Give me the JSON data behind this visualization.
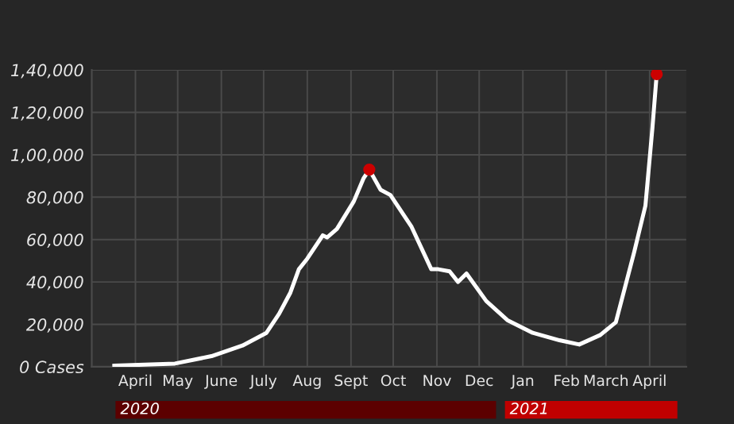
{
  "chart_data": {
    "type": "line",
    "x": [
      "2020-03-17",
      "2020-04-29",
      "2020-05-25",
      "2020-06-16",
      "2020-07-03",
      "2020-07-12",
      "2020-07-20",
      "2020-07-26",
      "2020-08-01",
      "2020-08-12",
      "2020-08-15",
      "2020-08-22",
      "2020-09-03",
      "2020-09-10",
      "2020-09-14",
      "2020-09-22",
      "2020-09-29",
      "2020-10-14",
      "2020-10-28",
      "2020-11-02",
      "2020-11-10",
      "2020-11-16",
      "2020-11-22",
      "2020-12-06",
      "2020-12-21",
      "2021-01-08",
      "2021-01-27",
      "2021-02-10",
      "2021-02-25",
      "2021-03-08",
      "2021-03-21",
      "2021-03-29",
      "2021-04-03",
      "2021-04-06"
    ],
    "series": [
      {
        "color": "#ffffff",
        "line_style": "solid",
        "marker": "none",
        "values": [
          500,
          1500,
          5000,
          10000,
          16000,
          25000,
          35000,
          46000,
          51000,
          62000,
          61000,
          65000,
          78000,
          89000,
          93000,
          83500,
          81000,
          66000,
          46000,
          46000,
          45000,
          40000,
          44000,
          31000,
          22000,
          16000,
          12500,
          10500,
          15000,
          21000,
          54000,
          76000,
          113000,
          138000
        ]
      },
      {
        "type": "scatter",
        "color": "#cc0000",
        "marker": "circle",
        "x": [
          "2020-09-14",
          "2021-04-06"
        ],
        "values": [
          93000,
          138000
        ]
      }
    ],
    "xlim": [
      "2020-03-01",
      "2021-04-27"
    ],
    "xticks": [
      {
        "value": "2020-04-01",
        "label": "April"
      },
      {
        "value": "2020-05-01",
        "label": "May"
      },
      {
        "value": "2020-06-01",
        "label": "June"
      },
      {
        "value": "2020-07-01",
        "label": "July"
      },
      {
        "value": "2020-08-01",
        "label": "Aug"
      },
      {
        "value": "2020-09-01",
        "label": "Sept"
      },
      {
        "value": "2020-10-01",
        "label": "Oct"
      },
      {
        "value": "2020-11-01",
        "label": "Nov"
      },
      {
        "value": "2020-12-01",
        "label": "Dec"
      },
      {
        "value": "2021-01-01",
        "label": "Jan"
      },
      {
        "value": "2021-02-01",
        "label": "Feb"
      },
      {
        "value": "2021-03-01",
        "label": "March"
      },
      {
        "value": "2021-04-01",
        "label": "April"
      }
    ],
    "ylim": [
      0,
      140000
    ],
    "yticks": [
      {
        "value": 0,
        "label": "0 Cases"
      },
      {
        "value": 20000,
        "label": "20,000"
      },
      {
        "value": 40000,
        "label": "40,000"
      },
      {
        "value": 60000,
        "label": "60,000"
      },
      {
        "value": 80000,
        "label": "80,000"
      },
      {
        "value": 100000,
        "label": "1,00,000"
      },
      {
        "value": 120000,
        "label": "1,20,000"
      },
      {
        "value": 140000,
        "label": "1,40,000"
      }
    ],
    "grid": true,
    "annotations": [
      "2020",
      "2021"
    ]
  }
}
